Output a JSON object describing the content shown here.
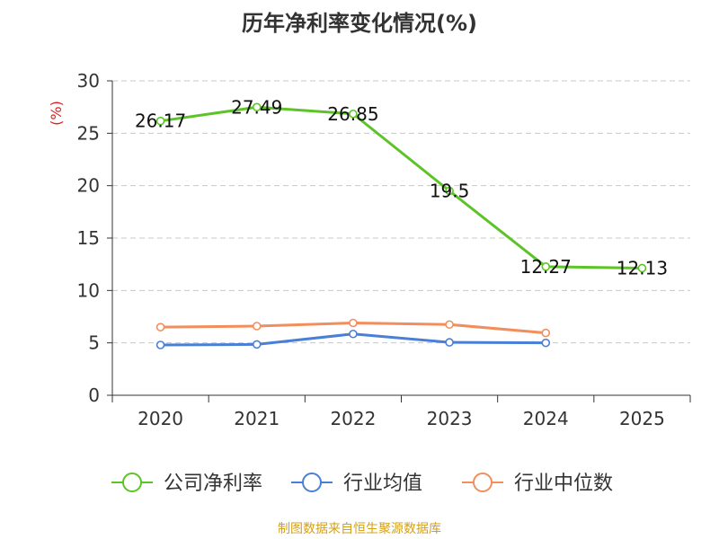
{
  "title": "历年净利率变化情况(%)",
  "ylabel": "(%)",
  "source": "制图数据来自恒生聚源数据库",
  "chart_data": {
    "type": "line",
    "title": "历年净利率变化情况(%)",
    "ylabel": "(%)",
    "xlabel": "",
    "categories": [
      "2020",
      "2021",
      "2022",
      "2023",
      "2024",
      "2025"
    ],
    "ylim": [
      0,
      30
    ],
    "yticks": [
      0,
      5,
      10,
      15,
      20,
      25,
      30
    ],
    "grid": true,
    "legend_position": "bottom",
    "series": [
      {
        "name": "公司净利率",
        "color": "#5cc427",
        "values": [
          26.17,
          27.49,
          26.85,
          19.5,
          12.27,
          12.13
        ],
        "labels": [
          "26.17",
          "27.49",
          "26.85",
          "19.5",
          "12.27",
          "12.13"
        ]
      },
      {
        "name": "行业均值",
        "color": "#4a7fd8",
        "values": [
          4.8,
          4.85,
          5.85,
          5.05,
          5.0,
          null
        ]
      },
      {
        "name": "行业中位数",
        "color": "#f28e5c",
        "values": [
          6.5,
          6.6,
          6.9,
          6.75,
          5.95,
          null
        ]
      }
    ]
  }
}
